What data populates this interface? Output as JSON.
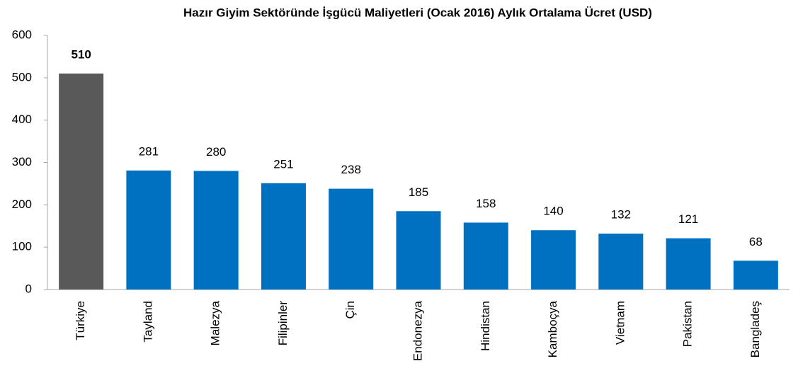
{
  "chart_data": {
    "type": "bar",
    "title": "Hazır Giyim Sektöründe İşgücü Maliyetleri (Ocak 2016)   Aylık Ortalama Ücret (USD)",
    "categories": [
      "Türkiye",
      "Tayland",
      "Malezya",
      "Filipinler",
      "Çin",
      "Endonezya",
      "Hindistan",
      "Kamboçya",
      "Vietnam",
      "Pakistan",
      "Bangladeş"
    ],
    "values": [
      510,
      281,
      280,
      251,
      238,
      185,
      158,
      140,
      132,
      121,
      68
    ],
    "color": "#0070c0",
    "highlight": {
      "index": 0,
      "color": "#595959"
    },
    "ylim": [
      0,
      600
    ],
    "yticks": [
      0,
      100,
      200,
      300,
      400,
      500,
      600
    ],
    "grid": false
  }
}
